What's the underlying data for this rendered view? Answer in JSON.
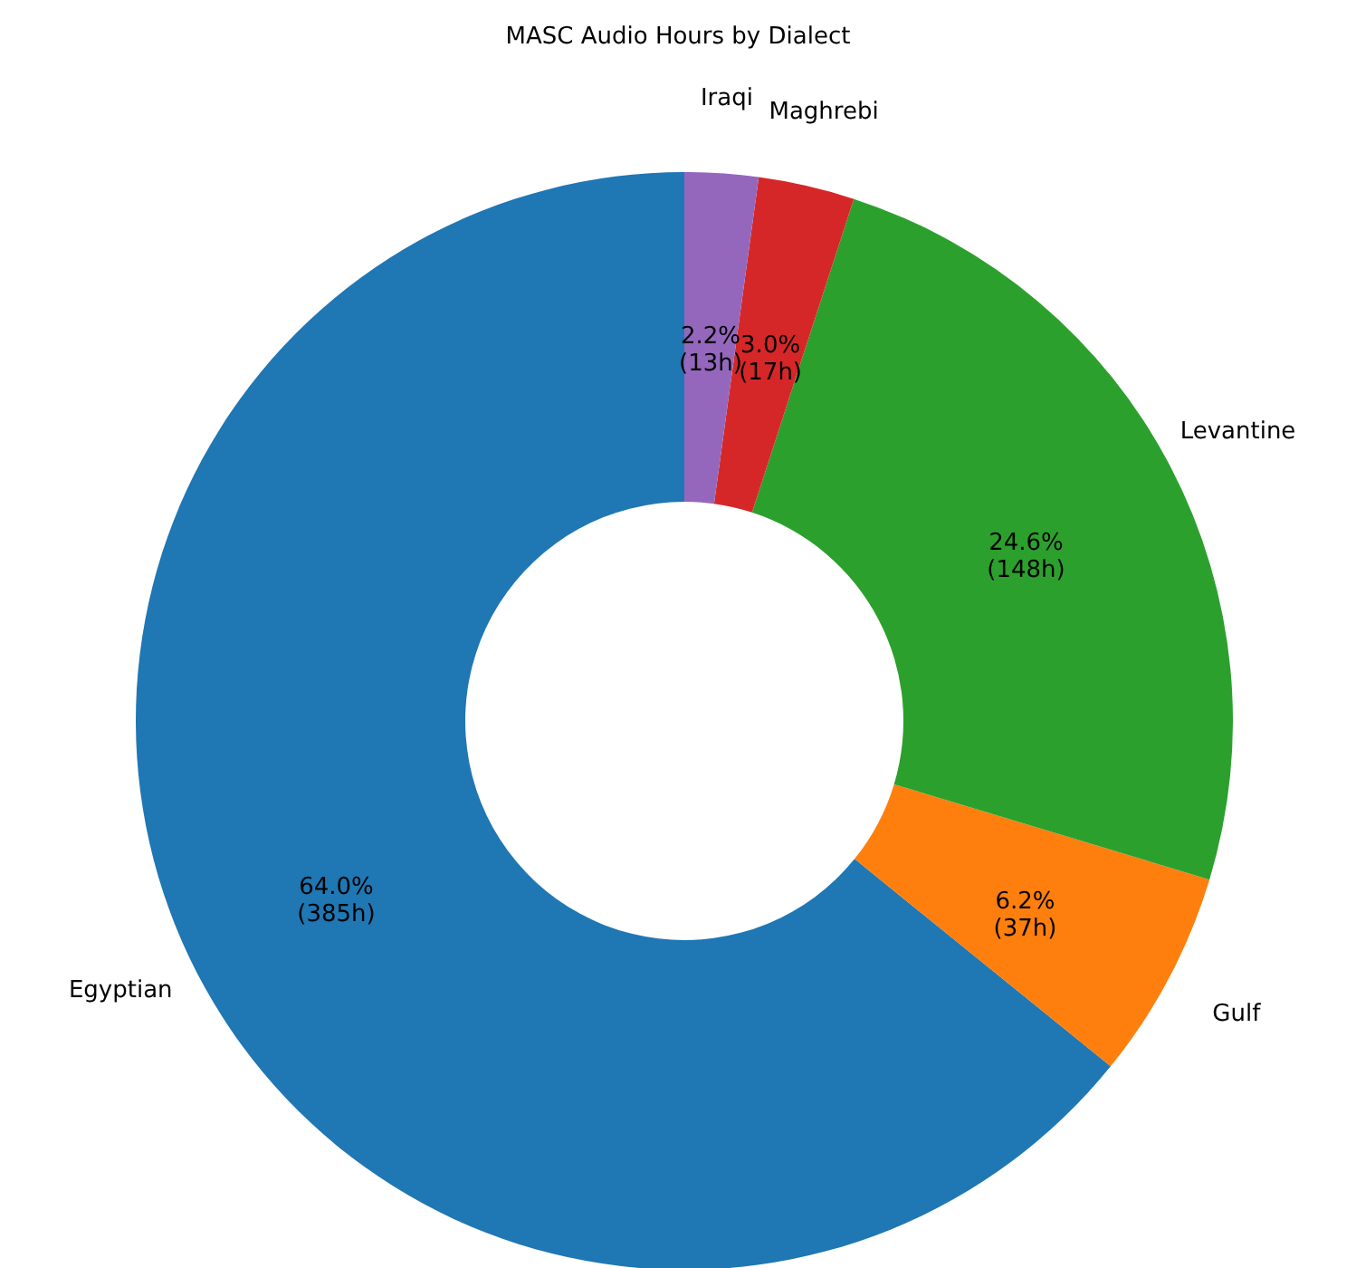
{
  "chart_data": {
    "type": "donut",
    "title": "MASC Audio Hours by Dialect",
    "categories": [
      "Egyptian",
      "Gulf",
      "Levantine",
      "Maghrebi",
      "Iraqi"
    ],
    "values": [
      385,
      37,
      148,
      17,
      13
    ],
    "colors": [
      "#1f77b4",
      "#ff7f0e",
      "#2ca02c",
      "#d62728",
      "#9467bd"
    ],
    "value_labels": [
      "64.0%\n(385h)",
      "6.2%\n(37h)",
      "24.6%\n(148h)",
      "3.0%\n(17h)",
      "2.2%\n(13h)"
    ],
    "legend": false
  }
}
